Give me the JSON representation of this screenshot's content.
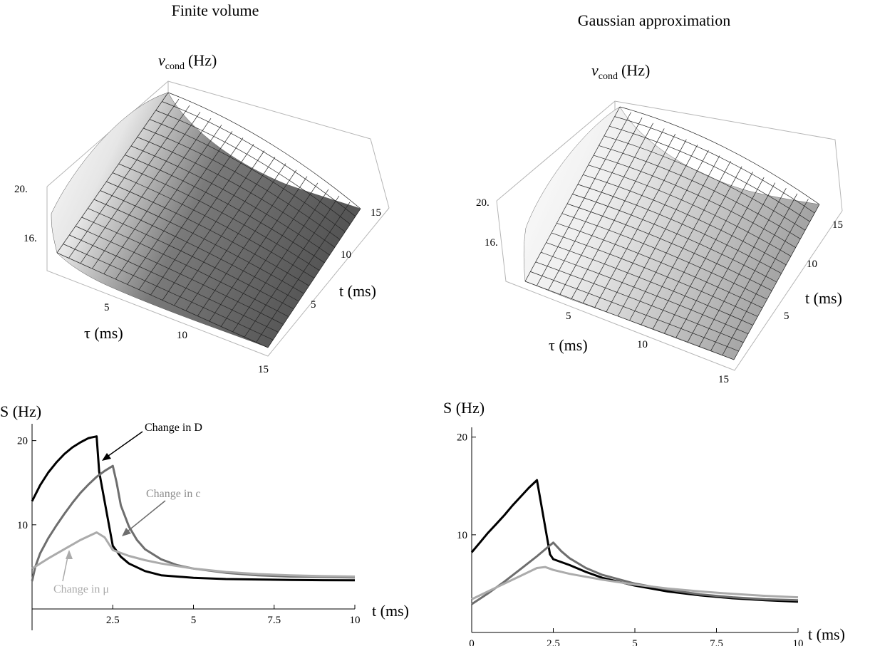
{
  "titles": {
    "left": "Finite volume",
    "right": "Gaussian approximation"
  },
  "chart_data": [
    {
      "type": "surface",
      "title": "Finite volume",
      "zlabel_main": "ν",
      "zlabel_sub": "cond",
      "zlabel_unit": "(Hz)",
      "xlabel": "τ (ms)",
      "ylabel": "t (ms)",
      "x_ticks": [
        "5",
        "10",
        "15"
      ],
      "y_ticks": [
        "5",
        "10",
        "15"
      ],
      "z_ticks": [
        "16.",
        "20."
      ],
      "xlim": [
        0,
        15
      ],
      "ylim": [
        0,
        15
      ],
      "grid": "mesh"
    },
    {
      "type": "surface",
      "title": "Gaussian approximation",
      "zlabel_main": "ν",
      "zlabel_sub": "cond",
      "zlabel_unit": "(Hz)",
      "xlabel": "τ (ms)",
      "ylabel": "t (ms)",
      "x_ticks": [
        "5",
        "10",
        "15"
      ],
      "y_ticks": [
        "5",
        "10",
        "15"
      ],
      "z_ticks": [
        "16.",
        "20."
      ],
      "xlim": [
        0,
        15
      ],
      "ylim": [
        0,
        15
      ],
      "grid": "mesh"
    },
    {
      "type": "line",
      "ylabel": "S (Hz)",
      "xlabel": "t (ms)",
      "xlim": [
        0,
        10
      ],
      "ylim": [
        0,
        22
      ],
      "x_ticks": [
        "2.5",
        "5",
        "7.5",
        "10"
      ],
      "x_tick_values": [
        2.5,
        5,
        7.5,
        10
      ],
      "y_ticks": [
        "10",
        "20"
      ],
      "y_tick_values": [
        10,
        20
      ],
      "annotations": [
        "Change in D",
        "Change in c",
        "Change in μ"
      ],
      "series": [
        {
          "name": "Change in D",
          "color": "#000000",
          "x": [
            0,
            0.25,
            0.5,
            0.75,
            1.0,
            1.25,
            1.5,
            1.75,
            2.0,
            2.08,
            2.5,
            2.75,
            3,
            3.5,
            4,
            5,
            6,
            7,
            8,
            9,
            10
          ],
          "y": [
            12.8,
            14.7,
            16.2,
            17.4,
            18.4,
            19.2,
            19.8,
            20.3,
            20.5,
            16.3,
            7.5,
            6.2,
            5.4,
            4.5,
            4.0,
            3.7,
            3.55,
            3.5,
            3.45,
            3.42,
            3.4
          ]
        },
        {
          "name": "Change in c",
          "color": "#6e6e6e",
          "x": [
            0,
            0.1,
            0.25,
            0.5,
            0.75,
            1.0,
            1.25,
            1.5,
            1.75,
            2.0,
            2.25,
            2.5,
            2.62,
            2.75,
            3,
            3.25,
            3.5,
            4,
            4.5,
            5,
            6,
            7,
            8,
            9,
            10
          ],
          "y": [
            3.3,
            5.0,
            6.6,
            8.4,
            9.9,
            11.3,
            12.6,
            13.8,
            14.8,
            15.7,
            16.4,
            17.0,
            15.0,
            12.3,
            9.8,
            8.2,
            7.1,
            5.9,
            5.2,
            4.8,
            4.3,
            4.0,
            3.85,
            3.8,
            3.75
          ]
        },
        {
          "name": "Change in μ",
          "color": "#ababab",
          "x": [
            0,
            0.5,
            1.0,
            1.5,
            2.0,
            2.25,
            2.5,
            3,
            3.5,
            4,
            5,
            6,
            7,
            8,
            9,
            10
          ],
          "y": [
            4.8,
            6.0,
            7.1,
            8.2,
            9.1,
            8.5,
            7.0,
            6.3,
            5.8,
            5.4,
            4.8,
            4.4,
            4.15,
            4.0,
            3.9,
            3.85
          ]
        }
      ]
    },
    {
      "type": "line",
      "ylabel": "S (Hz)",
      "xlabel": "t (ms)",
      "xlim": [
        0,
        10
      ],
      "ylim": [
        0,
        21
      ],
      "x_ticks": [
        "0",
        "2.5",
        "5",
        "7.5",
        "10"
      ],
      "x_tick_values": [
        0,
        2.5,
        5,
        7.5,
        10
      ],
      "y_ticks": [
        "10",
        "20"
      ],
      "y_tick_values": [
        10,
        20
      ],
      "series": [
        {
          "color": "#000000",
          "x": [
            0,
            0.25,
            0.5,
            0.75,
            1.0,
            1.25,
            1.5,
            1.75,
            2.0,
            2.4,
            2.5,
            3,
            3.5,
            4,
            5,
            6,
            7,
            8,
            9,
            10
          ],
          "y": [
            8.2,
            9.2,
            10.2,
            11.1,
            12.0,
            13.0,
            13.9,
            14.8,
            15.6,
            8.0,
            7.5,
            6.9,
            6.2,
            5.6,
            4.8,
            4.2,
            3.8,
            3.5,
            3.3,
            3.15
          ]
        },
        {
          "color": "#6e6e6e",
          "x": [
            0,
            0.5,
            1.0,
            1.5,
            2.0,
            2.25,
            2.5,
            2.75,
            3,
            3.5,
            4,
            5,
            6,
            7,
            8,
            9,
            10
          ],
          "y": [
            2.9,
            4.0,
            5.2,
            6.5,
            7.8,
            8.5,
            9.2,
            8.3,
            7.6,
            6.6,
            5.9,
            5.0,
            4.4,
            3.9,
            3.6,
            3.4,
            3.3
          ]
        },
        {
          "color": "#ababab",
          "x": [
            0,
            0.5,
            1.0,
            1.5,
            2.0,
            2.25,
            2.5,
            3,
            3.5,
            4,
            5,
            6,
            7,
            8,
            9,
            10
          ],
          "y": [
            3.4,
            4.2,
            5.0,
            5.8,
            6.6,
            6.7,
            6.4,
            6.0,
            5.7,
            5.4,
            4.9,
            4.5,
            4.2,
            3.95,
            3.75,
            3.6
          ]
        }
      ]
    }
  ]
}
